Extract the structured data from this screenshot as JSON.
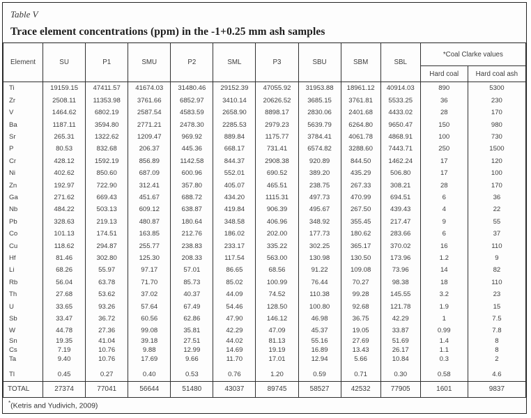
{
  "title": {
    "label": "Table V",
    "heading": "Trace element concentrations (ppm) in the -1+0.25 mm ash samples"
  },
  "table": {
    "col_headers": [
      "Element",
      "SU",
      "P1",
      "SMU",
      "P2",
      "SML",
      "P3",
      "SBU",
      "SBM",
      "SBL"
    ],
    "clarke_header": "*Coal Clarke values",
    "clarke_subheaders": [
      "Hard coal",
      "Hard coal ash"
    ],
    "rows": [
      {
        "element": "Ti",
        "values": [
          "19159.15",
          "47411.57",
          "41674.03",
          "31480.46",
          "29152.39",
          "47055.92",
          "31953.88",
          "18961.12",
          "40914.03",
          "890",
          "5300"
        ]
      },
      {
        "element": "Zr",
        "values": [
          "2508.11",
          "11353.98",
          "3761.66",
          "6852.97",
          "3410.14",
          "20626.52",
          "3685.15",
          "3761.81",
          "5533.25",
          "36",
          "230"
        ]
      },
      {
        "element": "V",
        "values": [
          "1464.62",
          "6802.19",
          "2587.54",
          "4583.59",
          "2658.90",
          "8898.17",
          "2830.06",
          "2401.68",
          "4433.02",
          "28",
          "170"
        ]
      },
      {
        "element": "Ba",
        "values": [
          "1187.11",
          "3594.80",
          "2771.21",
          "2478.30",
          "2285.53",
          "2979.23",
          "5639.79",
          "6264.80",
          "9650.47",
          "150",
          "980"
        ]
      },
      {
        "element": "Sr",
        "values": [
          "265.31",
          "1322.62",
          "1209.47",
          "969.92",
          "889.84",
          "1175.77",
          "3784.41",
          "4061.78",
          "4868.91",
          "100",
          "730"
        ]
      },
      {
        "element": "P",
        "values": [
          "80.53",
          "832.68",
          "206.37",
          "445.36",
          "668.17",
          "731.41",
          "6574.82",
          "3288.60",
          "7443.71",
          "250",
          "1500"
        ]
      },
      {
        "element": "Cr",
        "values": [
          "428.12",
          "1592.19",
          "856.89",
          "1142.58",
          "844.37",
          "2908.38",
          "920.89",
          "844.50",
          "1462.24",
          "17",
          "120"
        ]
      },
      {
        "element": "Ni",
        "values": [
          "402.62",
          "850.60",
          "687.09",
          "600.96",
          "552.01",
          "690.52",
          "389.20",
          "435.29",
          "506.80",
          "17",
          "100"
        ]
      },
      {
        "element": "Zn",
        "values": [
          "192.97",
          "722.90",
          "312.41",
          "357.80",
          "405.07",
          "465.51",
          "238.75",
          "267.33",
          "308.21",
          "28",
          "170"
        ]
      },
      {
        "element": "Ga",
        "values": [
          "271.62",
          "669.43",
          "451.67",
          "688.72",
          "434.20",
          "1115.31",
          "497.73",
          "470.99",
          "694.51",
          "6",
          "36"
        ]
      },
      {
        "element": "Nb",
        "values": [
          "484.22",
          "503.13",
          "609.12",
          "638.87",
          "419.84",
          "906.39",
          "495.67",
          "267.50",
          "439.43",
          "4",
          "22"
        ]
      },
      {
        "element": "Pb",
        "values": [
          "328.63",
          "219.13",
          "480.87",
          "180.64",
          "348.58",
          "406.96",
          "348.92",
          "355.45",
          "217.47",
          "9",
          "55"
        ]
      },
      {
        "element": "Co",
        "values": [
          "101.13",
          "174.51",
          "163.85",
          "212.76",
          "186.02",
          "202.00",
          "177.73",
          "180.62",
          "283.66",
          "6",
          "37"
        ]
      },
      {
        "element": "Cu",
        "values": [
          "118.62",
          "294.87",
          "255.77",
          "238.83",
          "233.17",
          "335.22",
          "302.25",
          "365.17",
          "370.02",
          "16",
          "110"
        ]
      },
      {
        "element": "Hf",
        "values": [
          "81.46",
          "302.80",
          "125.30",
          "208.33",
          "117.54",
          "563.00",
          "130.98",
          "130.50",
          "173.96",
          "1.2",
          "9"
        ]
      },
      {
        "element": "Li",
        "values": [
          "68.26",
          "55.97",
          "97.17",
          "57.01",
          "86.65",
          "68.56",
          "91.22",
          "109.08",
          "73.96",
          "14",
          "82"
        ]
      },
      {
        "element": "Rb",
        "values": [
          "56.04",
          "63.78",
          "71.70",
          "85.73",
          "85.02",
          "100.99",
          "76.44",
          "70.27",
          "98.38",
          "18",
          "110"
        ]
      },
      {
        "element": "Th",
        "values": [
          "27.68",
          "53.62",
          "37.02",
          "40.37",
          "44.09",
          "74.52",
          "110.38",
          "99.28",
          "145.55",
          "3.2",
          "23"
        ]
      },
      {
        "element": "U",
        "values": [
          "33.65",
          "93.26",
          "57.64",
          "67.49",
          "54.46",
          "128.50",
          "100.80",
          "92.68",
          "121.78",
          "1.9",
          "15"
        ]
      },
      {
        "element": "Sb",
        "values": [
          "33.47",
          "36.72",
          "60.56",
          "62.86",
          "47.90",
          "146.12",
          "46.98",
          "36.75",
          "42.29",
          "1",
          "7.5"
        ]
      },
      {
        "element": "W",
        "values": [
          "44.78",
          "27.36",
          "99.08",
          "35.81",
          "42.29",
          "47.09",
          "45.37",
          "19.05",
          "33.87",
          "0.99",
          "7.8"
        ]
      },
      {
        "element": "Sn",
        "values": [
          "19.35",
          "41.04",
          "39.18",
          "27.51",
          "44.02",
          "81.13",
          "55.16",
          "27.69",
          "51.69",
          "1.4",
          "8"
        ]
      },
      {
        "element": "Cs",
        "values": [
          "7.19",
          "10.76",
          "9.88",
          "12.99",
          "14.69",
          "19.19",
          "16.89",
          "13.43",
          "26.17",
          "1.1",
          "8"
        ]
      },
      {
        "element": "Ta",
        "values": [
          "9.40",
          "10.76",
          "17.69",
          "9.66",
          "11.70",
          "17.01",
          "12.94",
          "5.66",
          "10.84",
          "0.3",
          "2"
        ]
      },
      {
        "element": "Tl",
        "values": [
          "0.45",
          "0.27",
          "0.40",
          "0.53",
          "0.76",
          "1.20",
          "0.59",
          "0.71",
          "0.30",
          "0.58",
          "4.6"
        ]
      }
    ],
    "total_row": {
      "element": "TOTAL",
      "values": [
        "27374",
        "77041",
        "56644",
        "51480",
        "43037",
        "89745",
        "58527",
        "42532",
        "77905",
        "1601",
        "9837"
      ]
    }
  },
  "footnote": {
    "marker": "*",
    "text": "(Ketris and Yudivich, 2009)"
  },
  "colors": {
    "border": "#2e2e2e",
    "text": "#3c3c3c",
    "background": "#fdfdfd"
  }
}
